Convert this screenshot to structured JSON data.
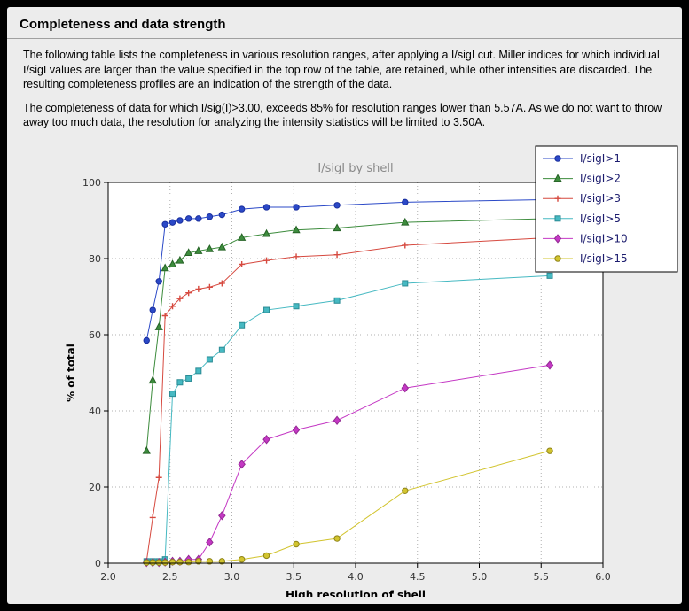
{
  "page": {
    "title": "Completeness and data strength",
    "paragraph1": "The following table lists the completeness in various resolution ranges, after applying a I/sigI cut. Miller indices for which individual I/sigI values are larger than the value specified in the top row of the table, are retained, while other intensities are discarded. The resulting completeness profiles are an indication of the strength of the data.",
    "paragraph2": "The completeness of data for which I/sig(I)>3.00, exceeds  85% for resolution ranges lower than 5.57A. As we do not want to throw away too much data, the resolution for analyzing the intensity statistics will be limited to 3.50A."
  },
  "colors": {
    "frame": "#000000",
    "panel_bg": "#ececec",
    "plot_bg": "#ffffff",
    "grid": "#b0b0b0",
    "spine": "#000000",
    "title_text": "#8a8a8a",
    "tick_text": "#333333",
    "legend_text": "#1c1c6e",
    "legend_bg": "#ffffff"
  },
  "chart_data": {
    "type": "line",
    "title": "I/sigI by shell",
    "xlabel": "High resolution of shell",
    "ylabel": "% of total",
    "xlim": [
      2.0,
      6.0
    ],
    "ylim": [
      0,
      100
    ],
    "xticks": [
      2.0,
      2.5,
      3.0,
      3.5,
      4.0,
      4.5,
      5.0,
      5.5,
      6.0
    ],
    "yticks": [
      0,
      20,
      40,
      60,
      80,
      100
    ],
    "grid": true,
    "legend_position": "upper-right, overlapping top-right corner of axes",
    "x": [
      2.31,
      2.36,
      2.41,
      2.46,
      2.52,
      2.58,
      2.65,
      2.73,
      2.82,
      2.92,
      3.08,
      3.28,
      3.52,
      3.85,
      4.4,
      5.57
    ],
    "series": [
      {
        "name": "I/sigI>1",
        "color": "#2b49c7",
        "edge_color": "#1a2f9e",
        "marker": "circle",
        "values": [
          58.5,
          66.5,
          74.0,
          89.0,
          89.5,
          90.0,
          90.5,
          90.5,
          91.0,
          91.5,
          93.0,
          93.5,
          93.5,
          94.0,
          94.8,
          95.5
        ]
      },
      {
        "name": "I/sigI>2",
        "color": "#3d8c3d",
        "edge_color": "#266326",
        "marker": "triangle",
        "values": [
          29.5,
          48.0,
          62.0,
          77.5,
          78.5,
          79.5,
          81.5,
          82.0,
          82.5,
          83.0,
          85.5,
          86.5,
          87.5,
          88.0,
          89.5,
          90.5
        ]
      },
      {
        "name": "I/sigI>3",
        "color": "#d6493f",
        "edge_color": "#a8322a",
        "marker": "plus",
        "values": [
          0.5,
          12.0,
          22.5,
          65.0,
          67.5,
          69.5,
          71.0,
          72.0,
          72.5,
          73.5,
          78.5,
          79.5,
          80.5,
          81.0,
          83.5,
          85.5
        ]
      },
      {
        "name": "I/sigI>5",
        "color": "#46b9c2",
        "edge_color": "#2a8b94",
        "marker": "square",
        "values": [
          0.5,
          0.5,
          0.5,
          1.0,
          44.5,
          47.5,
          48.5,
          50.5,
          53.5,
          56.0,
          62.5,
          66.5,
          67.5,
          69.0,
          73.5,
          75.5
        ]
      },
      {
        "name": "I/sigI>10",
        "color": "#c438c4",
        "edge_color": "#932a93",
        "marker": "diamond",
        "values": [
          0.2,
          0.2,
          0.2,
          0.3,
          0.5,
          0.5,
          1.0,
          1.0,
          5.5,
          12.5,
          26.0,
          32.5,
          35.0,
          37.5,
          46.0,
          52.0
        ]
      },
      {
        "name": "I/sigI>15",
        "color": "#d2c42e",
        "edge_color": "#8f8418",
        "marker": "circle",
        "values": [
          0.2,
          0.2,
          0.2,
          0.2,
          0.3,
          0.3,
          0.3,
          0.5,
          0.5,
          0.5,
          1.0,
          2.0,
          5.0,
          6.5,
          19.0,
          29.5
        ]
      }
    ]
  }
}
